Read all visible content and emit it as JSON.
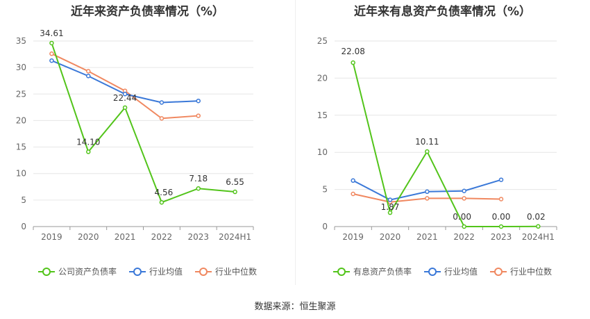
{
  "chart_data": [
    {
      "type": "line",
      "title": "近年来资产负债率情况（%）",
      "categories": [
        "2019",
        "2020",
        "2021",
        "2022",
        "2023",
        "2024H1"
      ],
      "ylim": [
        0,
        35
      ],
      "yticks": [
        0,
        5,
        10,
        15,
        20,
        25,
        30,
        35
      ],
      "grid": true,
      "legend_position": "bottom",
      "series": [
        {
          "name": "公司资产负债率",
          "color": "#52c41a",
          "values": [
            34.61,
            14.1,
            22.44,
            4.56,
            7.18,
            6.55
          ],
          "labels": [
            "34.61",
            "14.10",
            "22.44",
            "4.56",
            "7.18",
            "6.55"
          ]
        },
        {
          "name": "行业均值",
          "color": "#3a78d8",
          "values": [
            31.3,
            28.4,
            25.0,
            23.4,
            23.7,
            null
          ]
        },
        {
          "name": "行业中位数",
          "color": "#f08860",
          "values": [
            32.6,
            29.3,
            25.6,
            20.4,
            20.9,
            null
          ]
        }
      ]
    },
    {
      "type": "line",
      "title": "近年来有息资产负债率情况（%）",
      "categories": [
        "2019",
        "2020",
        "2021",
        "2022",
        "2023",
        "2024H1"
      ],
      "ylim": [
        0,
        25
      ],
      "yticks": [
        0,
        5,
        10,
        15,
        20,
        25
      ],
      "grid": true,
      "legend_position": "bottom",
      "series": [
        {
          "name": "有息资产负债率",
          "color": "#52c41a",
          "values": [
            22.08,
            1.87,
            10.11,
            0.0,
            0.0,
            0.02
          ],
          "labels": [
            "22.08",
            "1.87",
            "10.11",
            "0.00",
            "0.00",
            "0.02"
          ]
        },
        {
          "name": "行业均值",
          "color": "#3a78d8",
          "values": [
            6.2,
            3.6,
            4.7,
            4.8,
            6.3,
            null
          ]
        },
        {
          "name": "行业中位数",
          "color": "#f08860",
          "values": [
            4.4,
            3.3,
            3.8,
            3.8,
            3.7,
            null
          ]
        }
      ]
    }
  ],
  "footer": {
    "source": "数据来源：恒生聚源"
  }
}
